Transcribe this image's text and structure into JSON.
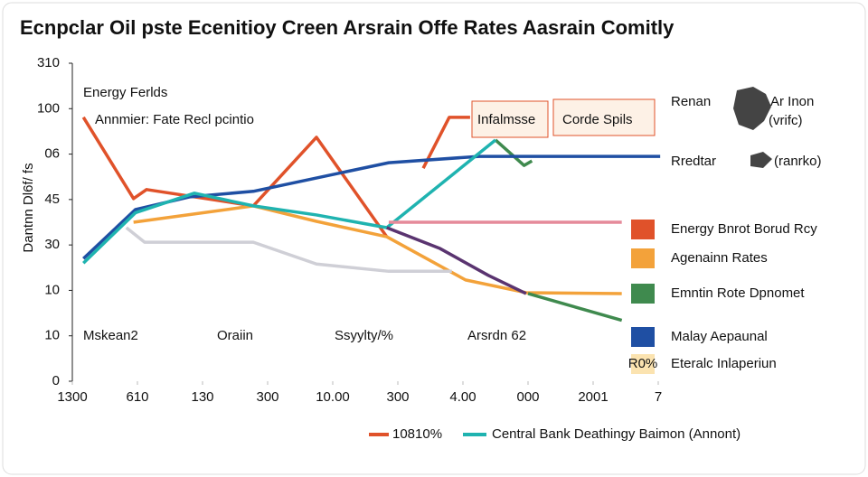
{
  "chart_data": {
    "type": "line",
    "title": "Ecnpclar Oil pste Ecenitioy Creen Arsrain Offe Rates Aasrain Comitly",
    "y_label": "Dantnn Dl6f/ fs",
    "xlim": [
      0,
      9
    ],
    "ylim": [
      0,
      7
    ],
    "xticks": [
      {
        "value": 0,
        "label": "1300"
      },
      {
        "value": 1,
        "label": "610"
      },
      {
        "value": 2,
        "label": "130"
      },
      {
        "value": 3,
        "label": "300"
      },
      {
        "value": 4,
        "label": "10.00"
      },
      {
        "value": 5,
        "label": "300"
      },
      {
        "value": 6,
        "label": "4.00"
      },
      {
        "value": 7,
        "label": "000"
      },
      {
        "value": 8,
        "label": "2001"
      },
      {
        "value": 9,
        "label": "7"
      }
    ],
    "yticks": [
      {
        "value": 0,
        "label": "0"
      },
      {
        "value": 1,
        "label": "10"
      },
      {
        "value": 2,
        "label": "10"
      },
      {
        "value": 3,
        "label": "30"
      },
      {
        "value": 4,
        "label": "45"
      },
      {
        "value": 5,
        "label": "06"
      },
      {
        "value": 6,
        "label": "100"
      },
      {
        "value": 7,
        "label": "310"
      }
    ],
    "series": [
      {
        "name": "Energy Bnrot Borud Rcy",
        "color": "#e0522a",
        "x": [
          0.17,
          0.94,
          1.14,
          2.78,
          3.75,
          4.83,
          null,
          5.39,
          5.79,
          6.11
        ],
        "values": [
          5.81,
          4.02,
          4.22,
          3.86,
          5.37,
          3.18,
          null,
          4.69,
          5.81,
          5.81
        ]
      },
      {
        "name": "Agenainn Rates",
        "color": "#f3a23a",
        "x": [
          0.94,
          2.78,
          3.75,
          4.83,
          6.04,
          6.97,
          8.44
        ],
        "values": [
          3.5,
          3.86,
          3.52,
          3.18,
          2.23,
          1.95,
          1.93
        ]
      },
      {
        "name": "Emntin Rote Dpnomet",
        "color": "#3f8a4e",
        "x": [
          6.5,
          6.94,
          7.06,
          null,
          7.0,
          8.44
        ],
        "values": [
          5.31,
          4.75,
          4.85,
          null,
          1.93,
          1.34
        ]
      },
      {
        "name": "Malay Aepaunal",
        "color": "#1f4fa3",
        "x": [
          0.17,
          0.97,
          1.81,
          2.78,
          4.86,
          6.25,
          9.03
        ],
        "values": [
          2.7,
          3.78,
          4.06,
          4.18,
          4.81,
          4.95,
          4.95
        ]
      },
      {
        "name": "Central Bank Deathingy Baimon (Annont)",
        "color": "#1fb3b0",
        "x": [
          0.17,
          0.97,
          1.875,
          2.78,
          3.75,
          4.83,
          6.5
        ],
        "values": [
          2.6,
          3.71,
          4.14,
          3.86,
          3.66,
          3.38,
          5.31
        ]
      },
      {
        "color": "#5a3470",
        "x": [
          4.83,
          5.65,
          6.39,
          6.97
        ],
        "values": [
          3.38,
          2.92,
          2.33,
          1.93
        ]
      },
      {
        "color": "#cfcfd6",
        "x": [
          0.83,
          1.11,
          2.78,
          3.75,
          4.86,
          5.83
        ],
        "values": [
          3.38,
          3.06,
          3.06,
          2.58,
          2.42,
          2.42
        ]
      },
      {
        "color": "#e58a9a",
        "x": [
          4.86,
          8.44
        ],
        "values": [
          3.5,
          3.5
        ]
      }
    ],
    "bottom_legend": [
      "10810%"
    ],
    "side_note": {
      "badge": "R0%",
      "text": "Eteralc Inlaperiun"
    },
    "annotations": [
      "Energy Ferlds",
      "Annmier: Fate Recl pcintio",
      "Mskean2",
      "Oraiin",
      "Ssyylty/%",
      "Arsrdn 62"
    ],
    "boxes": [
      "Infalmsse",
      "Corde Spils"
    ],
    "map_labels": [
      "Renan",
      "Ar Inon",
      "(vrifc)",
      "Rredtar",
      "(ranrko)"
    ]
  }
}
